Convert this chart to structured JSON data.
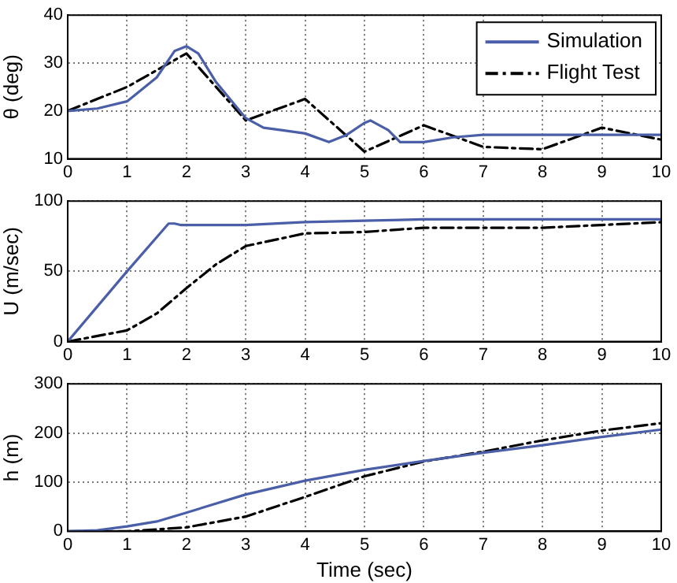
{
  "chart_data": [
    {
      "type": "line",
      "ylabel": "θ (deg)",
      "xlim": [
        0,
        10
      ],
      "xticks": [
        0,
        1,
        2,
        3,
        4,
        5,
        6,
        7,
        8,
        9,
        10
      ],
      "ylim": [
        10,
        40
      ],
      "yticks": [
        10,
        20,
        30,
        40
      ],
      "grid": true,
      "legend": "top right",
      "marker": "none",
      "series": [
        {
          "name": "Simulation",
          "color": "#4a5fa8",
          "line_style": "solid",
          "x": [
            0,
            0.5,
            1,
            1.5,
            1.8,
            2,
            2.2,
            2.5,
            3,
            3.3,
            3.6,
            4,
            4.4,
            4.7,
            5,
            5.1,
            5.4,
            5.6,
            6,
            6.5,
            7,
            8,
            9,
            10
          ],
          "values": [
            20,
            20.5,
            22,
            27,
            32.5,
            33.5,
            32,
            26,
            18.5,
            16.5,
            16,
            15.3,
            13.5,
            15,
            17.5,
            18,
            16,
            13.5,
            13.5,
            14.5,
            15,
            15,
            15,
            15
          ]
        },
        {
          "name": "Flight Test",
          "color": "#000000",
          "line_style": "dashed",
          "x": [
            0,
            1,
            2,
            3,
            4,
            5,
            6,
            7,
            8,
            9,
            10
          ],
          "values": [
            20,
            25,
            32,
            18,
            22.5,
            11.5,
            17,
            12.5,
            12,
            16.5,
            14
          ]
        }
      ]
    },
    {
      "type": "line",
      "ylabel": "U (m/sec)",
      "xlim": [
        0,
        10
      ],
      "xticks": [
        0,
        1,
        2,
        3,
        4,
        5,
        6,
        7,
        8,
        9,
        10
      ],
      "ylim": [
        0,
        100
      ],
      "yticks": [
        0,
        50,
        100
      ],
      "grid": true,
      "marker": "none",
      "series": [
        {
          "color": "#4a5fa8",
          "line_style": "solid",
          "x": [
            0,
            1,
            1.7,
            1.8,
            1.9,
            3,
            4,
            5,
            6,
            10
          ],
          "values": [
            0,
            50,
            84,
            84,
            83,
            83,
            85,
            86,
            87,
            87
          ]
        },
        {
          "color": "#000000",
          "line_style": "dashed",
          "x": [
            0,
            1,
            1.5,
            2,
            2.5,
            3,
            4,
            5,
            6,
            8,
            9,
            10
          ],
          "values": [
            0,
            8,
            20,
            38,
            55,
            68,
            77,
            78,
            81,
            81,
            83,
            85
          ]
        }
      ]
    },
    {
      "type": "line",
      "xlabel": "Time (sec)",
      "ylabel": "h (m)",
      "xlim": [
        0,
        10
      ],
      "xticks": [
        0,
        1,
        2,
        3,
        4,
        5,
        6,
        7,
        8,
        9,
        10
      ],
      "ylim": [
        0,
        300
      ],
      "yticks": [
        0,
        100,
        200,
        300
      ],
      "grid": true,
      "marker": "none",
      "series": [
        {
          "color": "#4a5fa8",
          "line_style": "solid",
          "x": [
            0,
            0.5,
            1,
            1.5,
            2,
            3,
            4,
            5,
            6,
            7,
            8,
            9,
            10
          ],
          "values": [
            0,
            2,
            10,
            20,
            38,
            75,
            103,
            125,
            143,
            160,
            175,
            192,
            207
          ]
        },
        {
          "color": "#000000",
          "line_style": "dashed",
          "x": [
            0,
            1,
            2,
            3,
            4,
            5,
            6,
            7,
            8,
            9,
            10
          ],
          "values": [
            0,
            0,
            8,
            30,
            70,
            112,
            142,
            162,
            185,
            205,
            220
          ]
        }
      ]
    }
  ]
}
